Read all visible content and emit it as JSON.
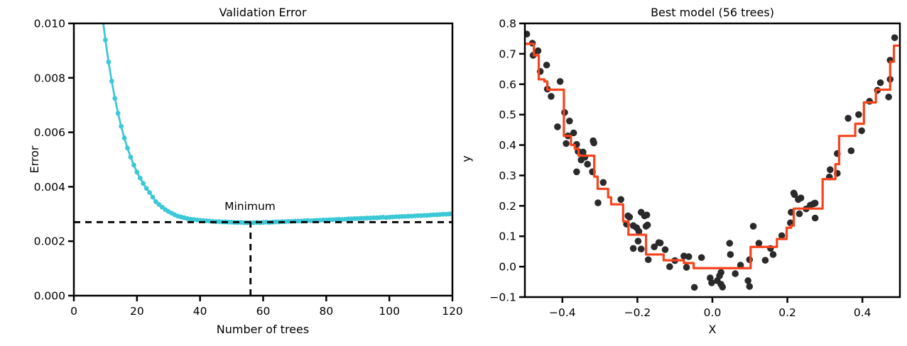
{
  "figure": {
    "background": "#ffffff"
  },
  "chart_data": [
    {
      "id": "validation-error",
      "type": "line",
      "title": "Validation Error",
      "xlabel": "Number of trees",
      "ylabel": "Error",
      "xlim": [
        0,
        120
      ],
      "ylim": [
        0,
        0.01
      ],
      "xticks": [
        0,
        20,
        40,
        60,
        80,
        100,
        120
      ],
      "xtick_labels": [
        "0",
        "20",
        "40",
        "60",
        "80",
        "100",
        "120"
      ],
      "yticks": [
        0,
        0.002,
        0.004,
        0.006,
        0.008,
        0.01
      ],
      "ytick_labels": [
        "0.000",
        "0.002",
        "0.004",
        "0.006",
        "0.008",
        "0.010"
      ],
      "grid": false,
      "series": {
        "name": "validation-error-curve",
        "color": "#3cc8d6",
        "marker": "dot",
        "n_start": 9,
        "values": [
          0.0103,
          0.00939,
          0.00858,
          0.00788,
          0.00725,
          0.0067,
          0.00622,
          0.00579,
          0.00542,
          0.00509,
          0.0048,
          0.00454,
          0.00432,
          0.00412,
          0.00394,
          0.00379,
          0.00362,
          0.00345,
          0.00335,
          0.00325,
          0.00316,
          0.00309,
          0.00303,
          0.00297,
          0.00292,
          0.00289,
          0.00286,
          0.00283,
          0.00281,
          0.0028,
          0.00278,
          0.00277,
          0.00276,
          0.00275,
          0.00274,
          0.00273,
          0.00272,
          0.00272,
          0.00271,
          0.00271,
          0.0027,
          0.0027,
          0.00269,
          0.00269,
          0.00269,
          0.00268,
          0.00268,
          0.00268,
          0.00268,
          0.00269,
          0.00268,
          0.00269,
          0.0027,
          0.00269,
          0.0027,
          0.00271,
          0.00271,
          0.00272,
          0.00272,
          0.00273,
          0.00273,
          0.00274,
          0.00274,
          0.00274,
          0.00275,
          0.00276,
          0.00275,
          0.00276,
          0.00277,
          0.00277,
          0.00278,
          0.00278,
          0.00279,
          0.00279,
          0.0028,
          0.00281,
          0.0028,
          0.00281,
          0.00282,
          0.00282,
          0.00283,
          0.00283,
          0.00284,
          0.00284,
          0.00285,
          0.00285,
          0.00286,
          0.00286,
          0.00287,
          0.00288,
          0.00287,
          0.00288,
          0.00289,
          0.0029,
          0.0029,
          0.00291,
          0.00291,
          0.00292,
          0.00292,
          0.00293,
          0.00294,
          0.00294,
          0.00295,
          0.00295,
          0.00296,
          0.00297,
          0.00297,
          0.00298,
          0.00299,
          0.00299,
          0.003,
          0.00301,
          0.00302,
          0.00303
        ]
      },
      "annotation": {
        "label": "Minimum",
        "best_n": 56,
        "min_error": 0.0027,
        "dash_color": "#000000"
      }
    },
    {
      "id": "best-model",
      "type": "scatter",
      "title": "Best model (56 trees)",
      "xlabel": "X",
      "ylabel": "y",
      "xlim": [
        -0.5,
        0.5
      ],
      "ylim": [
        -0.1,
        0.8
      ],
      "xticks": [
        -0.4,
        -0.2,
        0.0,
        0.2,
        0.4
      ],
      "xtick_labels": [
        "−0.4",
        "−0.2",
        "0.0",
        "0.2",
        "0.4"
      ],
      "yticks": [
        -0.1,
        0.0,
        0.1,
        0.2,
        0.3,
        0.4,
        0.5,
        0.6,
        0.7,
        0.8
      ],
      "ytick_labels": [
        "−0.1",
        "0.0",
        "0.1",
        "0.2",
        "0.3",
        "0.4",
        "0.5",
        "0.6",
        "0.7",
        "0.8"
      ],
      "grid": false,
      "scatter": {
        "name": "training-data",
        "color": "#2a2a2a",
        "points": [
          [
            -0.495,
            0.765
          ],
          [
            -0.48,
            0.735
          ],
          [
            -0.478,
            0.695
          ],
          [
            -0.465,
            0.71
          ],
          [
            -0.459,
            0.642
          ],
          [
            -0.442,
            0.663
          ],
          [
            -0.44,
            0.584
          ],
          [
            -0.43,
            0.56
          ],
          [
            -0.413,
            0.46
          ],
          [
            -0.406,
            0.609
          ],
          [
            -0.394,
            0.507
          ],
          [
            -0.39,
            0.405
          ],
          [
            -0.385,
            0.43
          ],
          [
            -0.381,
            0.479
          ],
          [
            -0.37,
            0.44
          ],
          [
            -0.362,
            0.402
          ],
          [
            -0.362,
            0.312
          ],
          [
            -0.358,
            0.379
          ],
          [
            -0.35,
            0.351
          ],
          [
            -0.345,
            0.377
          ],
          [
            -0.34,
            0.36
          ],
          [
            -0.333,
            0.337
          ],
          [
            -0.32,
            0.312
          ],
          [
            -0.318,
            0.414
          ],
          [
            -0.316,
            0.407
          ],
          [
            -0.305,
            0.21
          ],
          [
            -0.291,
            0.277
          ],
          [
            -0.244,
            0.221
          ],
          [
            -0.229,
            0.14
          ],
          [
            -0.225,
            0.167
          ],
          [
            -0.221,
            0.163
          ],
          [
            -0.211,
            0.135
          ],
          [
            -0.211,
            0.06
          ],
          [
            -0.202,
            0.128
          ],
          [
            -0.198,
            0.084
          ],
          [
            -0.196,
            0.116
          ],
          [
            -0.19,
            0.179
          ],
          [
            -0.19,
            0.058
          ],
          [
            -0.181,
            0.167
          ],
          [
            -0.177,
            0.133
          ],
          [
            -0.175,
            0.17
          ],
          [
            -0.173,
            0.137
          ],
          [
            -0.171,
            0.023
          ],
          [
            -0.155,
            0.065
          ],
          [
            -0.143,
            0.079
          ],
          [
            -0.139,
            0.078
          ],
          [
            -0.126,
            0.056
          ],
          [
            -0.114,
            0.0
          ],
          [
            -0.1,
            0.02
          ],
          [
            -0.076,
            0.035
          ],
          [
            -0.069,
            -0.002
          ],
          [
            -0.063,
            0.033
          ],
          [
            -0.048,
            -0.068
          ],
          [
            -0.029,
            0.03
          ],
          [
            -0.006,
            -0.037
          ],
          [
            -0.002,
            -0.053
          ],
          [
            0.013,
            -0.046
          ],
          [
            0.019,
            -0.03
          ],
          [
            0.023,
            -0.058
          ],
          [
            0.023,
            -0.019
          ],
          [
            0.027,
            -0.067
          ],
          [
            0.046,
            0.077
          ],
          [
            0.048,
            0.04
          ],
          [
            0.061,
            -0.023
          ],
          [
            0.075,
            0.005
          ],
          [
            0.095,
            -0.046
          ],
          [
            0.099,
            0.023
          ],
          [
            0.099,
            -0.065
          ],
          [
            0.109,
            0.133
          ],
          [
            0.124,
            0.077
          ],
          [
            0.141,
            0.021
          ],
          [
            0.155,
            0.06
          ],
          [
            0.162,
            0.04
          ],
          [
            0.185,
            0.102
          ],
          [
            0.208,
            0.144
          ],
          [
            0.21,
            0.179
          ],
          [
            0.217,
            0.242
          ],
          [
            0.219,
            0.237
          ],
          [
            0.229,
            0.221
          ],
          [
            0.232,
            0.174
          ],
          [
            0.236,
            0.226
          ],
          [
            0.25,
            0.19
          ],
          [
            0.261,
            0.202
          ],
          [
            0.27,
            0.207
          ],
          [
            0.274,
            0.16
          ],
          [
            0.274,
            0.209
          ],
          [
            0.312,
            0.295
          ],
          [
            0.314,
            0.319
          ],
          [
            0.333,
            0.372
          ],
          [
            0.333,
            0.307
          ],
          [
            0.362,
            0.488
          ],
          [
            0.37,
            0.381
          ],
          [
            0.39,
            0.5
          ],
          [
            0.398,
            0.447
          ],
          [
            0.419,
            0.544
          ],
          [
            0.44,
            0.58
          ],
          [
            0.448,
            0.605
          ],
          [
            0.47,
            0.558
          ],
          [
            0.474,
            0.679
          ],
          [
            0.474,
            0.616
          ],
          [
            0.486,
            0.753
          ]
        ]
      },
      "step": {
        "name": "gbrt-prediction",
        "color": "#f6431c",
        "breakpoints": [
          [
            -0.5,
            0.733
          ],
          [
            -0.476,
            0.695
          ],
          [
            -0.463,
            0.616
          ],
          [
            -0.448,
            0.609
          ],
          [
            -0.44,
            0.582
          ],
          [
            -0.396,
            0.43
          ],
          [
            -0.377,
            0.4
          ],
          [
            -0.367,
            0.388
          ],
          [
            -0.357,
            0.365
          ],
          [
            -0.315,
            0.296
          ],
          [
            -0.306,
            0.256
          ],
          [
            -0.278,
            0.228
          ],
          [
            -0.27,
            0.205
          ],
          [
            -0.238,
            0.149
          ],
          [
            -0.224,
            0.105
          ],
          [
            -0.177,
            0.04
          ],
          [
            -0.13,
            0.021
          ],
          [
            -0.076,
            0.012
          ],
          [
            -0.05,
            -0.005
          ],
          [
            0.102,
            0.065
          ],
          [
            0.172,
            0.091
          ],
          [
            0.198,
            0.128
          ],
          [
            0.21,
            0.135
          ],
          [
            0.217,
            0.191
          ],
          [
            0.294,
            0.288
          ],
          [
            0.328,
            0.337
          ],
          [
            0.338,
            0.43
          ],
          [
            0.381,
            0.47
          ],
          [
            0.404,
            0.54
          ],
          [
            0.436,
            0.582
          ],
          [
            0.474,
            0.674
          ],
          [
            0.484,
            0.727
          ]
        ],
        "x_end": 0.5
      }
    }
  ]
}
